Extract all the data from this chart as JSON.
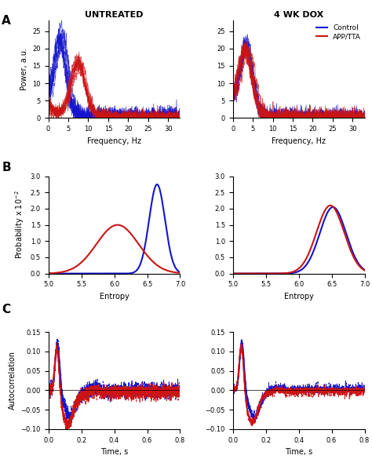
{
  "panel_A_title_left": "UNTREATED",
  "panel_A_title_right": "4 WK DOX",
  "panel_A_ylabel": "Power, a.u.",
  "panel_A_xlabel": "Frequency, Hz",
  "panel_B_ylabel": "Probability x 10$^{-2}$",
  "panel_B_xlabel": "Entropy",
  "panel_C_ylabel": "Autocorrelation",
  "panel_C_xlabel": "Time, s",
  "legend_labels": [
    "Control",
    "APP/TTA"
  ],
  "blue_color": "#1414cc",
  "red_color": "#cc1414",
  "power_xlim": [
    0,
    33
  ],
  "power_ylim": [
    0,
    28
  ],
  "power_yticks": [
    0,
    5,
    10,
    15,
    20,
    25
  ],
  "power_xticks": [
    0,
    5,
    10,
    15,
    20,
    25,
    30
  ],
  "entropy_xlim": [
    5,
    7
  ],
  "entropy_ylim": [
    0,
    3
  ],
  "entropy_xticks": [
    5,
    5.5,
    6,
    6.5,
    7
  ],
  "entropy_yticks": [
    0,
    0.5,
    1,
    1.5,
    2,
    2.5,
    3
  ],
  "autocorr_xlim": [
    0,
    0.8
  ],
  "autocorr_ylim": [
    -0.1,
    0.15
  ],
  "autocorr_yticks": [
    -0.1,
    -0.05,
    0,
    0.05,
    0.1,
    0.15
  ],
  "autocorr_xticks": [
    0,
    0.2,
    0.4,
    0.6,
    0.8
  ]
}
